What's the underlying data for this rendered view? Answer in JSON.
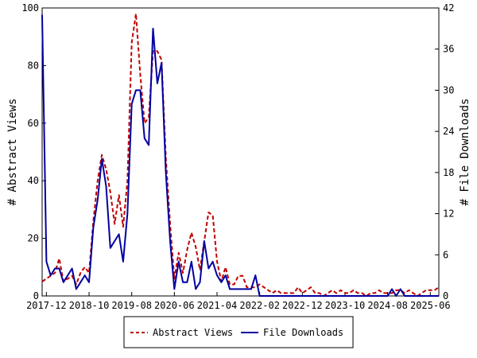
{
  "chart_data": {
    "type": "line",
    "ylabel": "# Abstract Views",
    "y2label": "# File Downloads",
    "ylim": [
      0,
      100
    ],
    "y2lim": [
      0,
      42
    ],
    "yticks": [
      0,
      20,
      40,
      60,
      80,
      100
    ],
    "y2ticks": [
      0,
      6,
      12,
      18,
      24,
      30,
      36,
      42
    ],
    "xlim": [
      "2017-11",
      "2025-08"
    ],
    "xticks": [
      "2017-12",
      "2018-10",
      "2019-08",
      "2020-06",
      "2021-04",
      "2022-02",
      "2022-12",
      "2023-10",
      "2024-08",
      "2025-06"
    ],
    "grid": false,
    "legend_position": "bottom",
    "series": [
      {
        "name": "Abstract Views",
        "axis": "left",
        "color": "#c00000",
        "style": "dashed",
        "points": [
          [
            "2017-11",
            5
          ],
          [
            "2017-12",
            6
          ],
          [
            "2018-01",
            7
          ],
          [
            "2018-02",
            8
          ],
          [
            "2018-03",
            13
          ],
          [
            "2018-04",
            5
          ],
          [
            "2018-05",
            6
          ],
          [
            "2018-06",
            7
          ],
          [
            "2018-07",
            4
          ],
          [
            "2018-08",
            8
          ],
          [
            "2018-09",
            10
          ],
          [
            "2018-10",
            8
          ],
          [
            "2018-11",
            26
          ],
          [
            "2018-12",
            40
          ],
          [
            "2019-01",
            49
          ],
          [
            "2019-02",
            44
          ],
          [
            "2019-03",
            36
          ],
          [
            "2019-04",
            25
          ],
          [
            "2019-05",
            35
          ],
          [
            "2019-06",
            24
          ],
          [
            "2019-07",
            40
          ],
          [
            "2019-08",
            88
          ],
          [
            "2019-09",
            98
          ],
          [
            "2019-10",
            77
          ],
          [
            "2019-11",
            60
          ],
          [
            "2019-12",
            62
          ],
          [
            "2020-01",
            85
          ],
          [
            "2020-02",
            85
          ],
          [
            "2020-03",
            82
          ],
          [
            "2020-04",
            48
          ],
          [
            "2020-05",
            25
          ],
          [
            "2020-06",
            6
          ],
          [
            "2020-07",
            15
          ],
          [
            "2020-08",
            8
          ],
          [
            "2020-09",
            16
          ],
          [
            "2020-10",
            22
          ],
          [
            "2020-11",
            17
          ],
          [
            "2020-12",
            9
          ],
          [
            "2021-01",
            19
          ],
          [
            "2021-02",
            29
          ],
          [
            "2021-03",
            28
          ],
          [
            "2021-04",
            12
          ],
          [
            "2021-05",
            5
          ],
          [
            "2021-06",
            10
          ],
          [
            "2021-07",
            4
          ],
          [
            "2021-08",
            4
          ],
          [
            "2021-09",
            7
          ],
          [
            "2021-10",
            7
          ],
          [
            "2021-11",
            3
          ],
          [
            "2021-12",
            3
          ],
          [
            "2022-01",
            3
          ],
          [
            "2022-02",
            4
          ],
          [
            "2022-03",
            3
          ],
          [
            "2022-04",
            2
          ],
          [
            "2022-05",
            1
          ],
          [
            "2022-06",
            2
          ],
          [
            "2022-07",
            1
          ],
          [
            "2022-08",
            1
          ],
          [
            "2022-09",
            1
          ],
          [
            "2022-10",
            1
          ],
          [
            "2022-11",
            3
          ],
          [
            "2022-12",
            1
          ],
          [
            "2023-01",
            2
          ],
          [
            "2023-02",
            3
          ],
          [
            "2023-03",
            1
          ],
          [
            "2023-04",
            1
          ],
          [
            "2023-05",
            0
          ],
          [
            "2023-06",
            1
          ],
          [
            "2023-07",
            2
          ],
          [
            "2023-08",
            1
          ],
          [
            "2023-09",
            2
          ],
          [
            "2023-10",
            1
          ],
          [
            "2023-11",
            1
          ],
          [
            "2023-12",
            2
          ],
          [
            "2024-01",
            1
          ],
          [
            "2024-02",
            1
          ],
          [
            "2024-03",
            0
          ],
          [
            "2024-04",
            1
          ],
          [
            "2024-05",
            1
          ],
          [
            "2024-06",
            2
          ],
          [
            "2024-07",
            1
          ],
          [
            "2024-08",
            1
          ],
          [
            "2024-09",
            1
          ],
          [
            "2024-10",
            2
          ],
          [
            "2024-11",
            2
          ],
          [
            "2024-12",
            1
          ],
          [
            "2025-01",
            2
          ],
          [
            "2025-02",
            1
          ],
          [
            "2025-03",
            0
          ],
          [
            "2025-04",
            1
          ],
          [
            "2025-05",
            2
          ],
          [
            "2025-06",
            2
          ],
          [
            "2025-07",
            2
          ],
          [
            "2025-08",
            3
          ]
        ]
      },
      {
        "name": "File Downloads",
        "axis": "right",
        "color": "#0000a0",
        "style": "solid",
        "points": [
          [
            "2017-11",
            41
          ],
          [
            "2017-12",
            5
          ],
          [
            "2018-01",
            3
          ],
          [
            "2018-02",
            4
          ],
          [
            "2018-03",
            4
          ],
          [
            "2018-04",
            2
          ],
          [
            "2018-05",
            3
          ],
          [
            "2018-06",
            4
          ],
          [
            "2018-07",
            1
          ],
          [
            "2018-08",
            2
          ],
          [
            "2018-09",
            3
          ],
          [
            "2018-10",
            2
          ],
          [
            "2018-11",
            10
          ],
          [
            "2018-12",
            14
          ],
          [
            "2019-01",
            20
          ],
          [
            "2019-02",
            16
          ],
          [
            "2019-03",
            7
          ],
          [
            "2019-04",
            8
          ],
          [
            "2019-05",
            9
          ],
          [
            "2019-06",
            5
          ],
          [
            "2019-07",
            12
          ],
          [
            "2019-08",
            28
          ],
          [
            "2019-09",
            30
          ],
          [
            "2019-10",
            30
          ],
          [
            "2019-11",
            23
          ],
          [
            "2019-12",
            22
          ],
          [
            "2020-01",
            39
          ],
          [
            "2020-02",
            31
          ],
          [
            "2020-03",
            34
          ],
          [
            "2020-04",
            18
          ],
          [
            "2020-05",
            8
          ],
          [
            "2020-06",
            1
          ],
          [
            "2020-07",
            5
          ],
          [
            "2020-08",
            2
          ],
          [
            "2020-09",
            2
          ],
          [
            "2020-10",
            5
          ],
          [
            "2020-11",
            1
          ],
          [
            "2020-12",
            2
          ],
          [
            "2021-01",
            8
          ],
          [
            "2021-02",
            4
          ],
          [
            "2021-03",
            5
          ],
          [
            "2021-04",
            3
          ],
          [
            "2021-05",
            2
          ],
          [
            "2021-06",
            3
          ],
          [
            "2021-07",
            1
          ],
          [
            "2021-08",
            1
          ],
          [
            "2021-09",
            1
          ],
          [
            "2021-10",
            1
          ],
          [
            "2021-11",
            1
          ],
          [
            "2021-12",
            1
          ],
          [
            "2022-01",
            3
          ],
          [
            "2022-02",
            0
          ],
          [
            "2022-03",
            0
          ],
          [
            "2022-04",
            0
          ],
          [
            "2022-05",
            0
          ],
          [
            "2022-06",
            0
          ],
          [
            "2022-07",
            0
          ],
          [
            "2022-08",
            0
          ],
          [
            "2022-09",
            0
          ],
          [
            "2022-10",
            0
          ],
          [
            "2022-11",
            0
          ],
          [
            "2022-12",
            0
          ],
          [
            "2023-01",
            0
          ],
          [
            "2023-02",
            0
          ],
          [
            "2023-03",
            0
          ],
          [
            "2023-04",
            0
          ],
          [
            "2023-05",
            0
          ],
          [
            "2023-06",
            0
          ],
          [
            "2023-07",
            0
          ],
          [
            "2023-08",
            0
          ],
          [
            "2023-09",
            0
          ],
          [
            "2023-10",
            0
          ],
          [
            "2023-11",
            0
          ],
          [
            "2023-12",
            0
          ],
          [
            "2024-01",
            0
          ],
          [
            "2024-02",
            0
          ],
          [
            "2024-03",
            0
          ],
          [
            "2024-04",
            0
          ],
          [
            "2024-05",
            0
          ],
          [
            "2024-06",
            0
          ],
          [
            "2024-07",
            0
          ],
          [
            "2024-08",
            0
          ],
          [
            "2024-09",
            1
          ],
          [
            "2024-10",
            0
          ],
          [
            "2024-11",
            1
          ],
          [
            "2024-12",
            0
          ],
          [
            "2025-01",
            0
          ],
          [
            "2025-02",
            0
          ],
          [
            "2025-03",
            0
          ],
          [
            "2025-04",
            0
          ],
          [
            "2025-05",
            0
          ],
          [
            "2025-06",
            0
          ],
          [
            "2025-07",
            0
          ],
          [
            "2025-08",
            0
          ]
        ]
      }
    ]
  }
}
